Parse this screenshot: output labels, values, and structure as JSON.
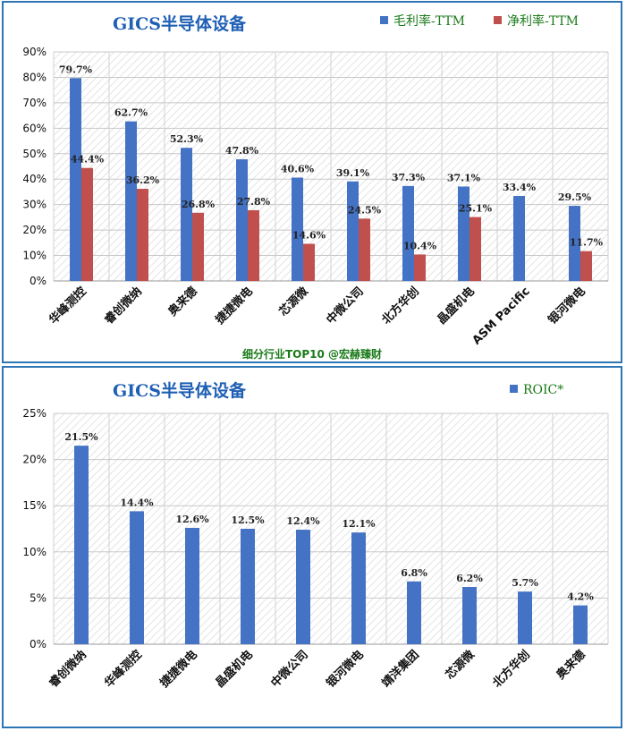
{
  "colors": {
    "blue": "#4472c4",
    "red": "#c0504d",
    "title": "#1f5fb4",
    "legend_text": "#1a7a1a",
    "border": "#2e75b6"
  },
  "chart_data": [
    {
      "type": "bar",
      "title": "GICS半导体设备",
      "categories": [
        "华峰测控",
        "睿创微纳",
        "奥来德",
        "捷捷微电",
        "芯源微",
        "中微公司",
        "北方华创",
        "晶盛机电",
        "ASM Pacific",
        "银河微电"
      ],
      "series": [
        {
          "name": "毛利率-TTM",
          "color": "#4472c4",
          "values": [
            79.7,
            62.7,
            52.3,
            47.8,
            40.6,
            39.1,
            37.3,
            37.1,
            33.4,
            29.5
          ],
          "labels": [
            "79.7%",
            "62.7%",
            "52.3%",
            "47.8%",
            "40.6%",
            "39.1%",
            "37.3%",
            "37.1%",
            "33.4%",
            "29.5%"
          ]
        },
        {
          "name": "净利率-TTM",
          "color": "#c0504d",
          "values": [
            44.4,
            36.2,
            26.8,
            27.8,
            14.6,
            24.5,
            10.4,
            25.1,
            null,
            11.7
          ],
          "labels": [
            "44.4%",
            "36.2%",
            "26.8%",
            "27.8%",
            "14.6%",
            "24.5%",
            "10.4%",
            "25.1%",
            "",
            "11.7%"
          ]
        }
      ],
      "ylim": [
        0,
        90
      ],
      "yticks": [
        "0%",
        "10%",
        "20%",
        "30%",
        "40%",
        "50%",
        "60%",
        "70%",
        "80%",
        "90%"
      ],
      "grid": true,
      "legend_position": "top-right",
      "footnote": "细分行业TOP10 @宏赫臻财"
    },
    {
      "type": "bar",
      "title": "GICS半导体设备",
      "categories": [
        "睿创微纳",
        "华峰测控",
        "捷捷微电",
        "晶盛机电",
        "中微公司",
        "银河微电",
        "靖洋集团",
        "芯源微",
        "北方华创",
        "奥来德"
      ],
      "series": [
        {
          "name": "ROIC*",
          "color": "#4472c4",
          "values": [
            21.5,
            14.4,
            12.6,
            12.5,
            12.4,
            12.1,
            6.8,
            6.2,
            5.7,
            4.2
          ],
          "labels": [
            "21.5%",
            "14.4%",
            "12.6%",
            "12.5%",
            "12.4%",
            "12.1%",
            "6.8%",
            "6.2%",
            "5.7%",
            "4.2%"
          ]
        }
      ],
      "ylim": [
        0,
        25
      ],
      "yticks": [
        "0%",
        "5%",
        "10%",
        "15%",
        "20%",
        "25%"
      ],
      "grid": true,
      "legend_position": "top-right"
    }
  ]
}
